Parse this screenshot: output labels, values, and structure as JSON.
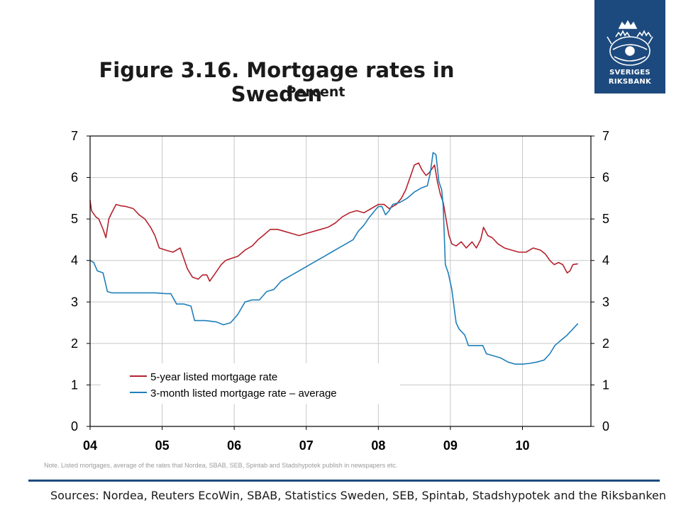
{
  "logo": {
    "line1": "SVERIGES",
    "line2": "RIKSBANK",
    "colors": {
      "background": "#1d4a7e",
      "foreground": "#ffffff"
    }
  },
  "title": "Figure 3.16. Mortgage rates in Sweden",
  "subtitle": "Percent",
  "note": "Note. Listed mortgages, average of the rates that Nordea, SBAB, SEB, Spintab and Stadshypotek publish in newspapers etc.",
  "sources": "Sources: Nordea, Reuters EcoWin, SBAB, Statistics Sweden, SEB, Spintab, Stadshypotek and the Riksbanken",
  "chart_data": {
    "type": "line",
    "ylim": [
      0,
      7
    ],
    "xlim": [
      2004.0,
      2010.95
    ],
    "y_ticks": [
      "0",
      "1",
      "2",
      "3",
      "4",
      "5",
      "6",
      "7"
    ],
    "x_ticks": [
      {
        "label": "04",
        "x": 2004
      },
      {
        "label": "05",
        "x": 2005
      },
      {
        "label": "06",
        "x": 2006
      },
      {
        "label": "07",
        "x": 2007
      },
      {
        "label": "08",
        "x": 2008
      },
      {
        "label": "09",
        "x": 2009
      },
      {
        "label": "10",
        "x": 2010
      }
    ],
    "grid": true,
    "legend_position": "bottom-left",
    "series": [
      {
        "name": "5-year listed mortgage rate",
        "color": "#b5222e",
        "points": [
          [
            2004.0,
            5.45
          ],
          [
            2004.02,
            5.2
          ],
          [
            2004.08,
            5.05
          ],
          [
            2004.12,
            5.0
          ],
          [
            2004.18,
            4.75
          ],
          [
            2004.22,
            4.55
          ],
          [
            2004.26,
            5.0
          ],
          [
            2004.3,
            5.15
          ],
          [
            2004.36,
            5.35
          ],
          [
            2004.42,
            5.32
          ],
          [
            2004.5,
            5.3
          ],
          [
            2004.6,
            5.25
          ],
          [
            2004.68,
            5.1
          ],
          [
            2004.76,
            5.0
          ],
          [
            2004.84,
            4.8
          ],
          [
            2004.9,
            4.6
          ],
          [
            2004.96,
            4.3
          ],
          [
            2005.05,
            4.25
          ],
          [
            2005.15,
            4.2
          ],
          [
            2005.25,
            4.3
          ],
          [
            2005.3,
            4.05
          ],
          [
            2005.35,
            3.8
          ],
          [
            2005.42,
            3.6
          ],
          [
            2005.5,
            3.55
          ],
          [
            2005.56,
            3.65
          ],
          [
            2005.62,
            3.65
          ],
          [
            2005.66,
            3.5
          ],
          [
            2005.7,
            3.6
          ],
          [
            2005.76,
            3.75
          ],
          [
            2005.82,
            3.9
          ],
          [
            2005.88,
            4.0
          ],
          [
            2005.96,
            4.05
          ],
          [
            2006.05,
            4.1
          ],
          [
            2006.15,
            4.25
          ],
          [
            2006.25,
            4.35
          ],
          [
            2006.33,
            4.5
          ],
          [
            2006.4,
            4.6
          ],
          [
            2006.5,
            4.75
          ],
          [
            2006.6,
            4.75
          ],
          [
            2006.7,
            4.7
          ],
          [
            2006.8,
            4.65
          ],
          [
            2006.9,
            4.6
          ],
          [
            2007.0,
            4.65
          ],
          [
            2007.1,
            4.7
          ],
          [
            2007.2,
            4.75
          ],
          [
            2007.3,
            4.8
          ],
          [
            2007.4,
            4.9
          ],
          [
            2007.5,
            5.05
          ],
          [
            2007.6,
            5.15
          ],
          [
            2007.7,
            5.2
          ],
          [
            2007.8,
            5.15
          ],
          [
            2007.9,
            5.25
          ],
          [
            2008.0,
            5.35
          ],
          [
            2008.08,
            5.35
          ],
          [
            2008.15,
            5.25
          ],
          [
            2008.25,
            5.35
          ],
          [
            2008.32,
            5.5
          ],
          [
            2008.38,
            5.7
          ],
          [
            2008.42,
            5.9
          ],
          [
            2008.46,
            6.1
          ],
          [
            2008.5,
            6.3
          ],
          [
            2008.56,
            6.35
          ],
          [
            2008.6,
            6.2
          ],
          [
            2008.66,
            6.05
          ],
          [
            2008.7,
            6.1
          ],
          [
            2008.74,
            6.2
          ],
          [
            2008.78,
            6.3
          ],
          [
            2008.82,
            5.9
          ],
          [
            2008.86,
            5.6
          ],
          [
            2008.9,
            5.4
          ],
          [
            2008.94,
            5.0
          ],
          [
            2008.98,
            4.6
          ],
          [
            2009.02,
            4.4
          ],
          [
            2009.08,
            4.35
          ],
          [
            2009.15,
            4.45
          ],
          [
            2009.22,
            4.3
          ],
          [
            2009.3,
            4.45
          ],
          [
            2009.36,
            4.3
          ],
          [
            2009.42,
            4.5
          ],
          [
            2009.46,
            4.8
          ],
          [
            2009.52,
            4.6
          ],
          [
            2009.58,
            4.55
          ],
          [
            2009.66,
            4.4
          ],
          [
            2009.75,
            4.3
          ],
          [
            2009.85,
            4.25
          ],
          [
            2009.95,
            4.2
          ],
          [
            2010.05,
            4.2
          ],
          [
            2010.15,
            4.3
          ],
          [
            2010.25,
            4.25
          ],
          [
            2010.32,
            4.15
          ],
          [
            2010.38,
            4.0
          ],
          [
            2010.44,
            3.9
          ],
          [
            2010.5,
            3.95
          ],
          [
            2010.56,
            3.9
          ],
          [
            2010.62,
            3.7
          ],
          [
            2010.66,
            3.75
          ],
          [
            2010.7,
            3.9
          ],
          [
            2010.77,
            3.92
          ]
        ]
      },
      {
        "name": "3-month listed mortgage rate – average",
        "color": "#1f7fba",
        "points": [
          [
            2004.0,
            4.0
          ],
          [
            2004.05,
            3.95
          ],
          [
            2004.1,
            3.75
          ],
          [
            2004.18,
            3.7
          ],
          [
            2004.24,
            3.25
          ],
          [
            2004.3,
            3.22
          ],
          [
            2004.5,
            3.22
          ],
          [
            2004.7,
            3.22
          ],
          [
            2004.9,
            3.22
          ],
          [
            2005.05,
            3.2
          ],
          [
            2005.12,
            3.2
          ],
          [
            2005.2,
            2.95
          ],
          [
            2005.3,
            2.95
          ],
          [
            2005.4,
            2.9
          ],
          [
            2005.45,
            2.55
          ],
          [
            2005.6,
            2.55
          ],
          [
            2005.75,
            2.52
          ],
          [
            2005.85,
            2.45
          ],
          [
            2005.95,
            2.5
          ],
          [
            2006.05,
            2.7
          ],
          [
            2006.15,
            3.0
          ],
          [
            2006.25,
            3.05
          ],
          [
            2006.35,
            3.05
          ],
          [
            2006.45,
            3.25
          ],
          [
            2006.55,
            3.3
          ],
          [
            2006.65,
            3.5
          ],
          [
            2006.75,
            3.6
          ],
          [
            2006.85,
            3.7
          ],
          [
            2006.95,
            3.8
          ],
          [
            2007.05,
            3.9
          ],
          [
            2007.15,
            4.0
          ],
          [
            2007.25,
            4.1
          ],
          [
            2007.35,
            4.2
          ],
          [
            2007.45,
            4.3
          ],
          [
            2007.55,
            4.4
          ],
          [
            2007.65,
            4.5
          ],
          [
            2007.72,
            4.7
          ],
          [
            2007.8,
            4.85
          ],
          [
            2007.88,
            5.05
          ],
          [
            2007.95,
            5.2
          ],
          [
            2008.0,
            5.3
          ],
          [
            2008.05,
            5.3
          ],
          [
            2008.1,
            5.1
          ],
          [
            2008.15,
            5.2
          ],
          [
            2008.2,
            5.35
          ],
          [
            2008.3,
            5.4
          ],
          [
            2008.4,
            5.5
          ],
          [
            2008.5,
            5.65
          ],
          [
            2008.6,
            5.75
          ],
          [
            2008.68,
            5.8
          ],
          [
            2008.72,
            6.1
          ],
          [
            2008.76,
            6.6
          ],
          [
            2008.8,
            6.55
          ],
          [
            2008.84,
            5.9
          ],
          [
            2008.88,
            5.7
          ],
          [
            2008.9,
            5.3
          ],
          [
            2008.93,
            3.9
          ],
          [
            2008.97,
            3.7
          ],
          [
            2009.02,
            3.3
          ],
          [
            2009.08,
            2.5
          ],
          [
            2009.12,
            2.35
          ],
          [
            2009.2,
            2.2
          ],
          [
            2009.25,
            1.95
          ],
          [
            2009.35,
            1.95
          ],
          [
            2009.45,
            1.95
          ],
          [
            2009.5,
            1.75
          ],
          [
            2009.6,
            1.7
          ],
          [
            2009.7,
            1.65
          ],
          [
            2009.8,
            1.55
          ],
          [
            2009.9,
            1.5
          ],
          [
            2010.0,
            1.5
          ],
          [
            2010.1,
            1.52
          ],
          [
            2010.2,
            1.55
          ],
          [
            2010.3,
            1.6
          ],
          [
            2010.38,
            1.75
          ],
          [
            2010.45,
            1.95
          ],
          [
            2010.55,
            2.1
          ],
          [
            2010.62,
            2.2
          ],
          [
            2010.7,
            2.35
          ],
          [
            2010.77,
            2.48
          ]
        ]
      }
    ]
  }
}
